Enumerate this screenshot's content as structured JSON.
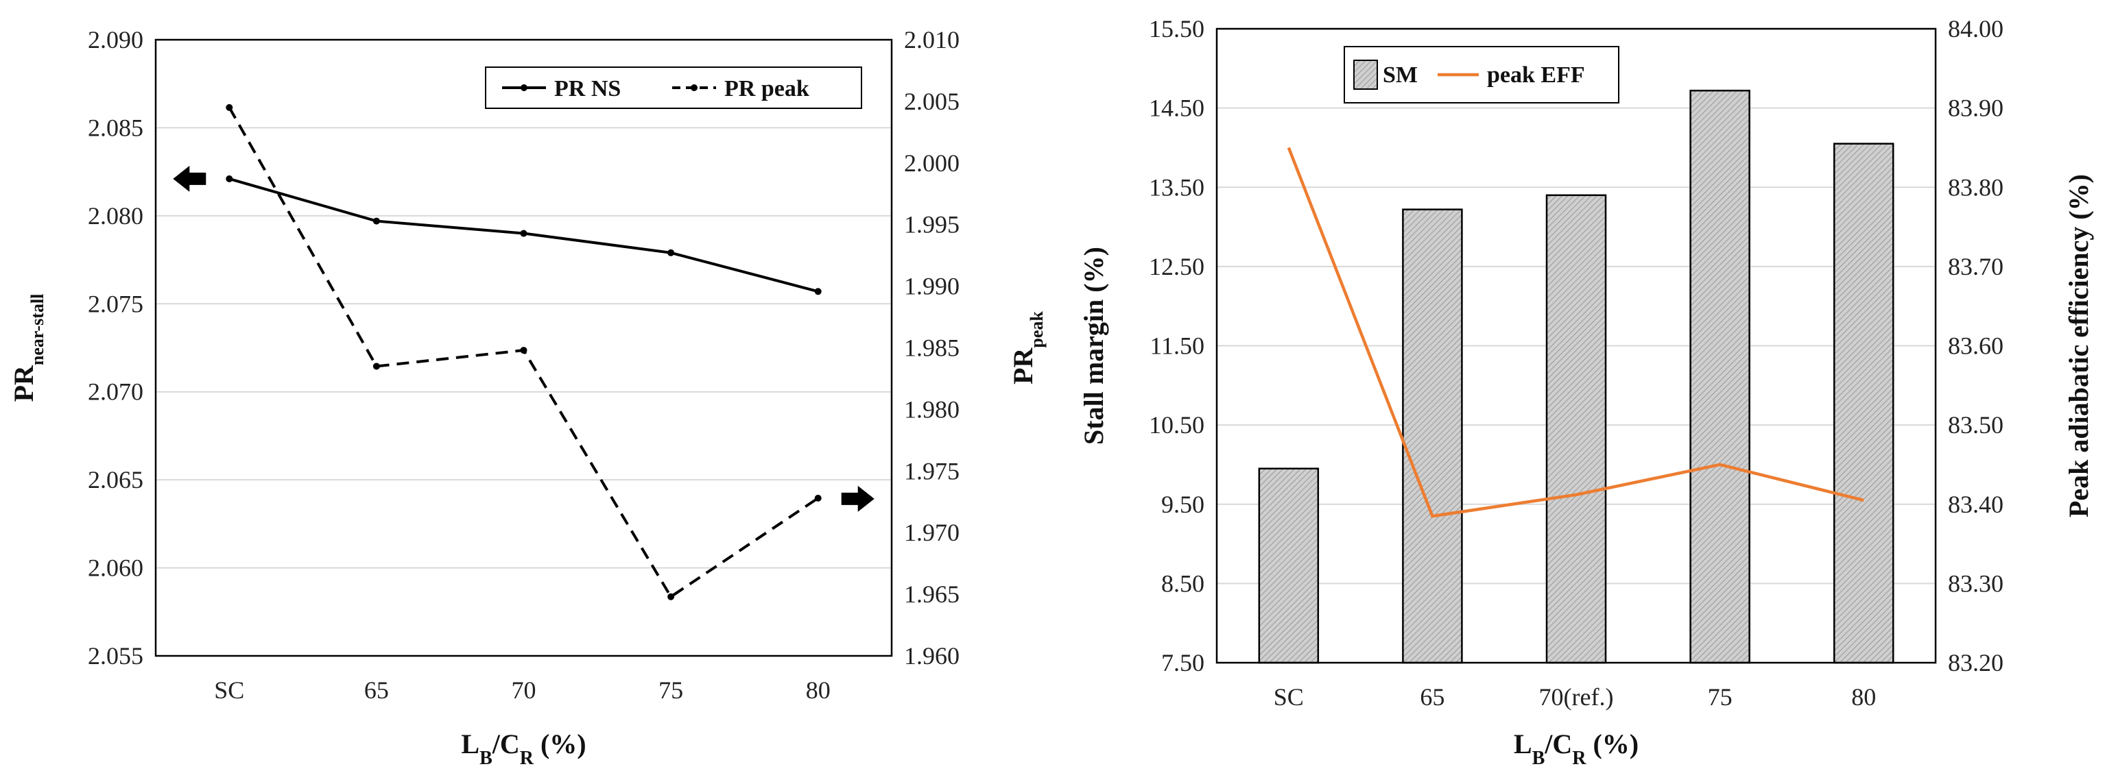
{
  "chart_data": [
    {
      "type": "line",
      "title": "",
      "categories": [
        "SC",
        "65",
        "70",
        "75",
        "80"
      ],
      "xlabel": {
        "main": "L",
        "sub1": "B",
        "mid": "/C",
        "sub2": "R",
        "tail": " (%)"
      },
      "ylabel_left": {
        "main": "PR",
        "sub": "near-stall"
      },
      "ylabel_right": {
        "main": "PR",
        "sub": "peak"
      },
      "ylim_left": [
        2.055,
        2.09
      ],
      "ylim_right": [
        1.96,
        2.01
      ],
      "yticks_left": [
        "2.055",
        "2.060",
        "2.065",
        "2.070",
        "2.075",
        "2.080",
        "2.085",
        "2.090"
      ],
      "yticks_right": [
        "1.960",
        "1.965",
        "1.970",
        "1.975",
        "1.980",
        "1.985",
        "1.990",
        "1.995",
        "2.000",
        "2.005",
        "2.010"
      ],
      "series": [
        {
          "name": "PR NS",
          "axis": "left",
          "style": "solid",
          "values": [
            2.0821,
            2.0797,
            2.079,
            2.0779,
            2.0757
          ]
        },
        {
          "name": "PR peak",
          "axis": "right",
          "style": "dashed",
          "values": [
            2.0045,
            1.9835,
            1.9848,
            1.9648,
            1.9728
          ]
        }
      ],
      "annotations": [
        {
          "label": "left-arrow",
          "meaning": "PR NS uses left axis"
        },
        {
          "label": "right-arrow",
          "meaning": "PR peak uses right axis"
        }
      ],
      "legend": "top-right",
      "grid": true,
      "colors": {
        "line": "#000000"
      }
    },
    {
      "type": "bar",
      "title": "",
      "categories": [
        "SC",
        "65",
        "70(ref.)",
        "75",
        "80"
      ],
      "xlabel": {
        "main": "L",
        "sub1": "B",
        "mid": "/C",
        "sub2": "R",
        "tail": " (%)"
      },
      "ylabel_left": "Stall margin (%)",
      "ylabel_right": "Peak adiabatic efficiency (%)",
      "ylim_left": [
        7.5,
        15.5
      ],
      "ylim_right": [
        83.2,
        84.0
      ],
      "yticks_left": [
        "7.50",
        "8.50",
        "9.50",
        "10.50",
        "11.50",
        "12.50",
        "13.50",
        "14.50",
        "15.50"
      ],
      "yticks_right": [
        "83.20",
        "83.30",
        "83.40",
        "83.50",
        "83.60",
        "83.70",
        "83.80",
        "83.90",
        "84.00"
      ],
      "series": [
        {
          "name": "SM",
          "axis": "left",
          "kind": "bar",
          "values": [
            9.95,
            13.22,
            13.4,
            14.72,
            14.05
          ]
        },
        {
          "name": "peak EFF",
          "axis": "right",
          "kind": "line",
          "values": [
            83.85,
            83.385,
            83.412,
            83.45,
            83.405
          ]
        }
      ],
      "legend": "top-left",
      "grid": true,
      "colors": {
        "bar_fill": "#c8c8c8",
        "bar_edge": "#000000",
        "line": "#ed7d31"
      }
    }
  ]
}
